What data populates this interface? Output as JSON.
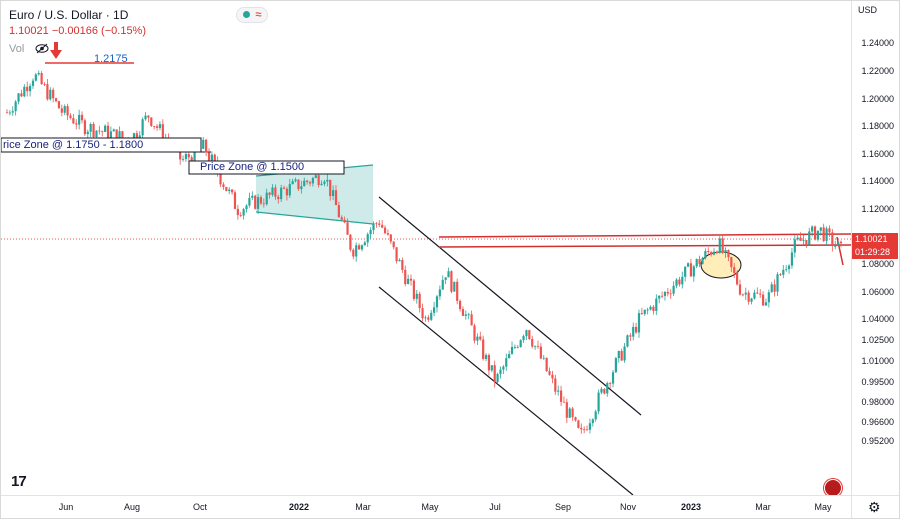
{
  "header": {
    "symbol": "Euro / U.S. Dollar · 1D",
    "ohlc_text": "1.10021  −0.00166 (−0.15%)",
    "vol_label": "Vol",
    "waves_glyph": "≈"
  },
  "annotations": {
    "peak_label": "1.2175",
    "zone1": "rice Zone @ 1.1750 - 1.1800",
    "zone2": "Price Zone @ 1.1500"
  },
  "price_axis": {
    "currency": "USD",
    "ticks": [
      "1.24000",
      "1.22000",
      "1.20000",
      "1.18000",
      "1.16000",
      "1.14000",
      "1.12000",
      "1.08000",
      "1.06000",
      "1.04000",
      "1.02500",
      "1.01000",
      "0.99500",
      "0.98000",
      "0.96600",
      "0.95200"
    ],
    "tick_values": [
      1.24,
      1.22,
      1.2,
      1.18,
      1.16,
      1.14,
      1.12,
      1.08,
      1.06,
      1.04,
      1.025,
      1.01,
      0.995,
      0.98,
      0.966,
      0.952
    ],
    "last_price": "1.10021",
    "countdown": "01:29:28"
  },
  "time_axis": {
    "labels": [
      "Jun",
      "Aug",
      "Oct",
      "2022",
      "Mar",
      "May",
      "Jul",
      "Sep",
      "Nov",
      "2023",
      "Mar",
      "May"
    ],
    "bold": [
      false,
      false,
      false,
      true,
      false,
      false,
      false,
      false,
      false,
      true,
      false,
      false
    ]
  },
  "branding": {
    "logo": "17"
  },
  "chart_data": {
    "type": "candlestick",
    "symbol": "EURUSD",
    "timeframe": "1D",
    "last": 1.10021,
    "change": -0.00166,
    "change_pct": -0.15,
    "ylim": [
      0.945,
      1.25
    ],
    "colors": {
      "up": "#26a69a",
      "down": "#ef5350",
      "resistance": "#d32f2f",
      "channel": "#131722",
      "wedge": "#26a69a"
    },
    "approx_path": [
      [
        "2021-05-01",
        1.19
      ],
      [
        "2021-05-25",
        1.2175
      ],
      [
        "2021-06-20",
        1.19
      ],
      [
        "2021-07-10",
        1.18
      ],
      [
        "2021-08-20",
        1.17
      ],
      [
        "2021-09-05",
        1.188
      ],
      [
        "2021-10-05",
        1.155
      ],
      [
        "2021-10-25",
        1.165
      ],
      [
        "2021-11-24",
        1.12
      ],
      [
        "2022-01-10",
        1.135
      ],
      [
        "2022-02-10",
        1.145
      ],
      [
        "2022-03-07",
        1.09
      ],
      [
        "2022-03-31",
        1.112
      ],
      [
        "2022-05-12",
        1.04
      ],
      [
        "2022-05-30",
        1.075
      ],
      [
        "2022-07-14",
        0.995
      ],
      [
        "2022-08-10",
        1.035
      ],
      [
        "2022-09-05",
        0.99
      ],
      [
        "2022-09-28",
        0.955
      ],
      [
        "2022-10-25",
        1.0
      ],
      [
        "2022-11-20",
        1.04
      ],
      [
        "2022-12-20",
        1.065
      ],
      [
        "2023-01-30",
        1.095
      ],
      [
        "2023-02-20",
        1.06
      ],
      [
        "2023-03-15",
        1.055
      ],
      [
        "2023-04-10",
        1.095
      ],
      [
        "2023-05-01",
        1.105
      ],
      [
        "2023-05-20",
        1.09
      ]
    ]
  }
}
